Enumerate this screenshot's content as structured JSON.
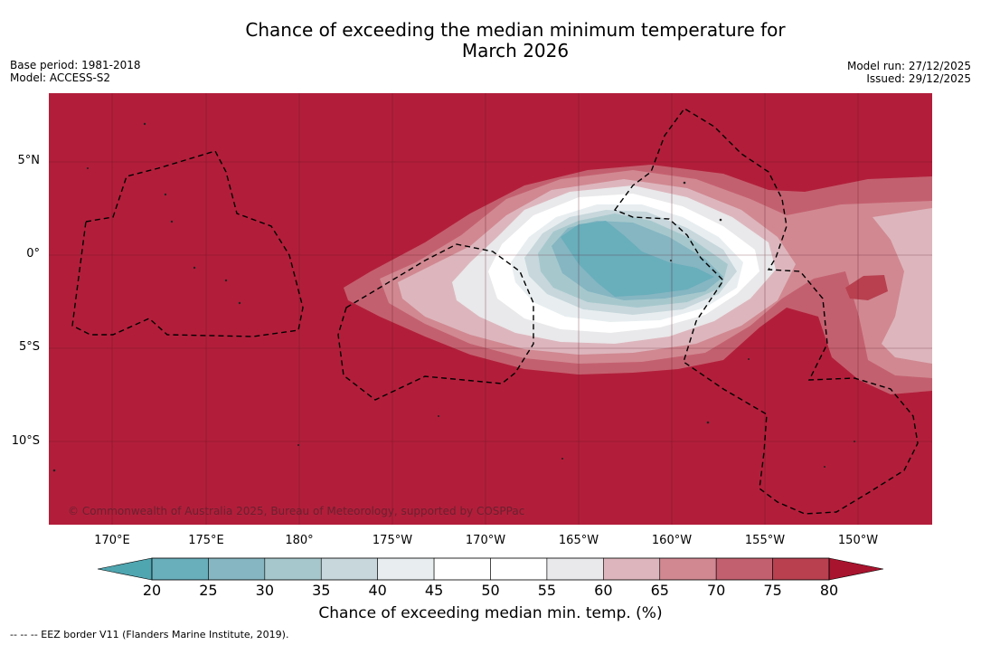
{
  "title": {
    "line1": "Chance of exceeding the median minimum temperature for",
    "line2": "March 2026"
  },
  "meta": {
    "base_period": "Base period: 1981-2018",
    "model": "Model: ACCESS-S2",
    "model_run": "Model run: 27/12/2025",
    "issued": "Issued: 29/12/2025"
  },
  "map": {
    "latitude_labels": [
      "5°N",
      "0°",
      "5°S",
      "10°S"
    ],
    "longitude_labels": [
      "170°E",
      "175°E",
      "180°",
      "175°W",
      "170°W",
      "165°W",
      "160°W",
      "155°W",
      "150°W"
    ],
    "copyright": "© Commonwealth of Australia 2025, Bureau of Meteorology, supported by COSPPac",
    "background_class_color": "#b21e3a"
  },
  "colorbar": {
    "ticks": [
      "20",
      "25",
      "30",
      "35",
      "40",
      "45",
      "50",
      "55",
      "60",
      "65",
      "70",
      "75",
      "80"
    ],
    "colors": [
      "#69aebb",
      "#85b6c2",
      "#a6c8cd",
      "#c7d7dc",
      "#e8eef0",
      "#ffffff",
      "#ffffff",
      "#e9e8ea",
      "#ddb6bd",
      "#d18891",
      "#c3606f",
      "#b8404f"
    ],
    "low_end_color": "#4fa5b0",
    "high_end_color": "#a8142e",
    "title": "Chance of exceeding median min. temp. (%)"
  },
  "legend": {
    "eez": "--  --  -- EEZ border V11 (Flanders Marine Institute, 2019)."
  }
}
